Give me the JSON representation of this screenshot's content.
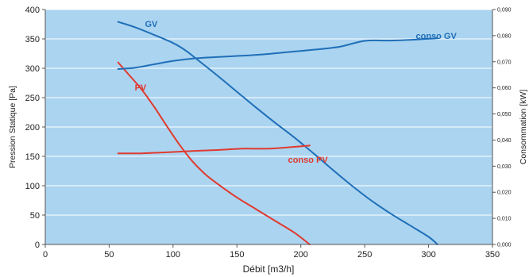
{
  "chart_data": {
    "type": "line",
    "xlabel": "Débit [m3/h]",
    "ylabel_left": "Pression Statique [Pa]",
    "ylabel_right": "Consommation [kW]",
    "xlim": [
      0,
      350
    ],
    "ylim_left": [
      0,
      400
    ],
    "ylim_right": [
      0,
      0.09
    ],
    "x_ticks": [
      "0",
      "50",
      "100",
      "150",
      "200",
      "250",
      "300",
      "350"
    ],
    "y_left_ticks": [
      "0",
      "50",
      "100",
      "150",
      "200",
      "250",
      "300",
      "350",
      "400"
    ],
    "y_right_ticks": [
      "0,000",
      "0,010",
      "0,020",
      "0,030",
      "0,040",
      "0,050",
      "0,060",
      "0,070",
      "0,080",
      "0,090"
    ],
    "grid": true,
    "background": "#abd4f0",
    "series": [
      {
        "name": "GV",
        "axis": "left",
        "color": "#1f6fb8",
        "x": [
          57,
          70,
          85,
          100,
          110,
          120,
          135,
          150,
          165,
          180,
          195,
          210,
          225,
          240,
          255,
          270,
          285,
          300,
          307
        ],
        "y": [
          379,
          370,
          357,
          343,
          330,
          313,
          287,
          260,
          233,
          207,
          182,
          155,
          127,
          100,
          75,
          53,
          33,
          13,
          0
        ]
      },
      {
        "name": "PV",
        "axis": "left",
        "color": "#e03a2f",
        "x": [
          57,
          65,
          75,
          85,
          95,
          105,
          115,
          125,
          135,
          150,
          165,
          180,
          195,
          207
        ],
        "y": [
          310,
          290,
          265,
          235,
          202,
          170,
          142,
          120,
          103,
          80,
          60,
          40,
          20,
          0
        ]
      },
      {
        "name": "conso GV",
        "axis": "right",
        "color": "#1f6fb8",
        "x": [
          57,
          70,
          85,
          100,
          115,
          130,
          150,
          170,
          190,
          210,
          230,
          250,
          270,
          290,
          307
        ],
        "y": [
          0.0672,
          0.0677,
          0.069,
          0.0703,
          0.0712,
          0.0717,
          0.0722,
          0.0728,
          0.0737,
          0.0746,
          0.0757,
          0.078,
          0.0781,
          0.0785,
          0.079
        ]
      },
      {
        "name": "conso PV",
        "axis": "right",
        "color": "#e03a2f",
        "x": [
          57,
          75,
          95,
          115,
          135,
          155,
          175,
          195,
          207
        ],
        "y": [
          0.0349,
          0.0349,
          0.0353,
          0.0358,
          0.0362,
          0.0367,
          0.0367,
          0.0374,
          0.0379
        ]
      }
    ],
    "annotations": [
      {
        "text": "GV",
        "color": "#1f6fb8",
        "x": 78,
        "y": 370,
        "axis": "left"
      },
      {
        "text": "conso GV",
        "color": "#1f6fb8",
        "x": 290,
        "y": 0.0787,
        "axis": "right"
      },
      {
        "text": "PV",
        "color": "#e03a2f",
        "x": 70,
        "y": 262,
        "axis": "left"
      },
      {
        "text": "conso PV",
        "color": "#e03a2f",
        "x": 190,
        "y": 0.0313,
        "axis": "right"
      }
    ]
  }
}
